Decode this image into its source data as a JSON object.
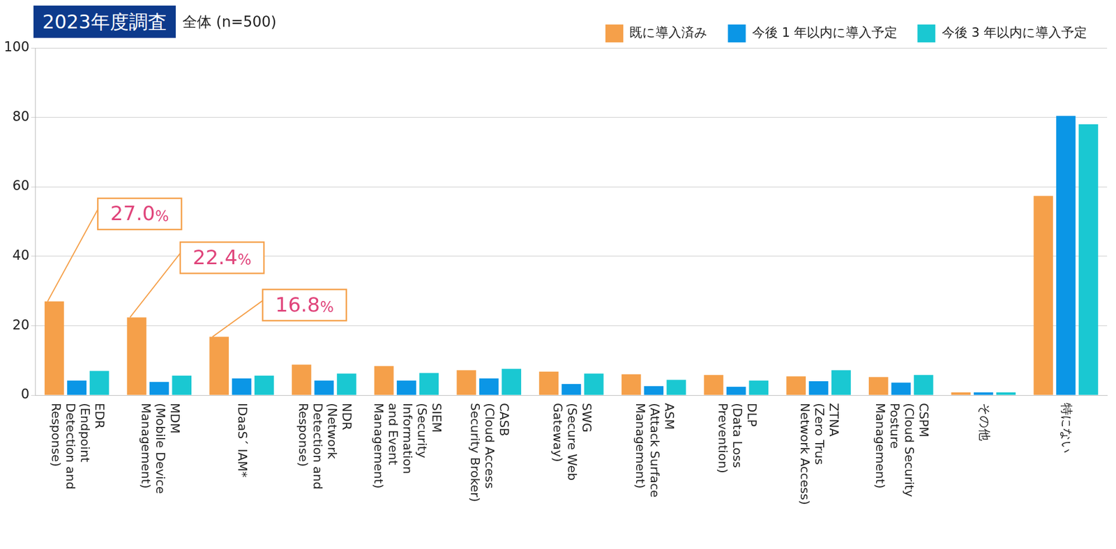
{
  "chart_data": {
    "type": "bar",
    "title": "2023年度調査",
    "subtitle": "全体 (n=500)",
    "categories": [
      [
        "EDR",
        "(Endpoint",
        "Detection and",
        "Response)"
      ],
      [
        "MDM",
        "(Mobile Device",
        "Management)"
      ],
      [
        "IDaaS´ IAM*"
      ],
      [
        "NDR",
        "(Network",
        "Detection and",
        "Response)"
      ],
      [
        "SIEM",
        "(Security",
        "Information",
        "and Event",
        "Management)"
      ],
      [
        "CASB",
        "(Cloud Access",
        "Security Broker)"
      ],
      [
        "SWG",
        "(Secure Web",
        "Gateway)"
      ],
      [
        "ASM",
        "(Attack Surface",
        "Management)"
      ],
      [
        "DLP",
        "(Data Loss",
        "Prevention)"
      ],
      [
        "ZTNA",
        "(Zero Trus",
        "Network Access)"
      ],
      [
        "CSPM",
        "(Cloud Security",
        "Posture",
        "Management)"
      ],
      [
        "その他"
      ],
      [
        "特にない"
      ]
    ],
    "series": [
      {
        "name": "既に導入済み",
        "color": "#f5a04a",
        "values": [
          27.0,
          22.4,
          16.8,
          8.8,
          8.4,
          7.2,
          6.8,
          6.0,
          5.8,
          5.4,
          5.2,
          0.8,
          57.4
        ]
      },
      {
        "name": "今後 1 年以内に導入予定",
        "color": "#0b96e6",
        "values": [
          4.2,
          3.8,
          4.8,
          4.2,
          4.2,
          4.8,
          3.2,
          2.6,
          2.4,
          4.0,
          3.6,
          0.8,
          80.4
        ]
      },
      {
        "name": "今後 3 年以内に導入予定",
        "color": "#1ac8d2",
        "values": [
          7.0,
          5.6,
          5.6,
          6.2,
          6.4,
          7.6,
          6.2,
          4.4,
          4.2,
          7.2,
          5.8,
          0.8,
          78.0
        ]
      }
    ],
    "annotations": [
      {
        "series": "既に導入済み",
        "category_index": 0,
        "value": 27.0,
        "text": "27.0%"
      },
      {
        "series": "既に導入済み",
        "category_index": 1,
        "value": 22.4,
        "text": "22.4%"
      },
      {
        "series": "既に導入済み",
        "category_index": 2,
        "value": 16.8,
        "text": "16.8%"
      }
    ],
    "ylim": [
      0,
      100
    ],
    "yticks": [
      0,
      20,
      40,
      60,
      80,
      100
    ],
    "grid": true,
    "legend": "top-right"
  }
}
